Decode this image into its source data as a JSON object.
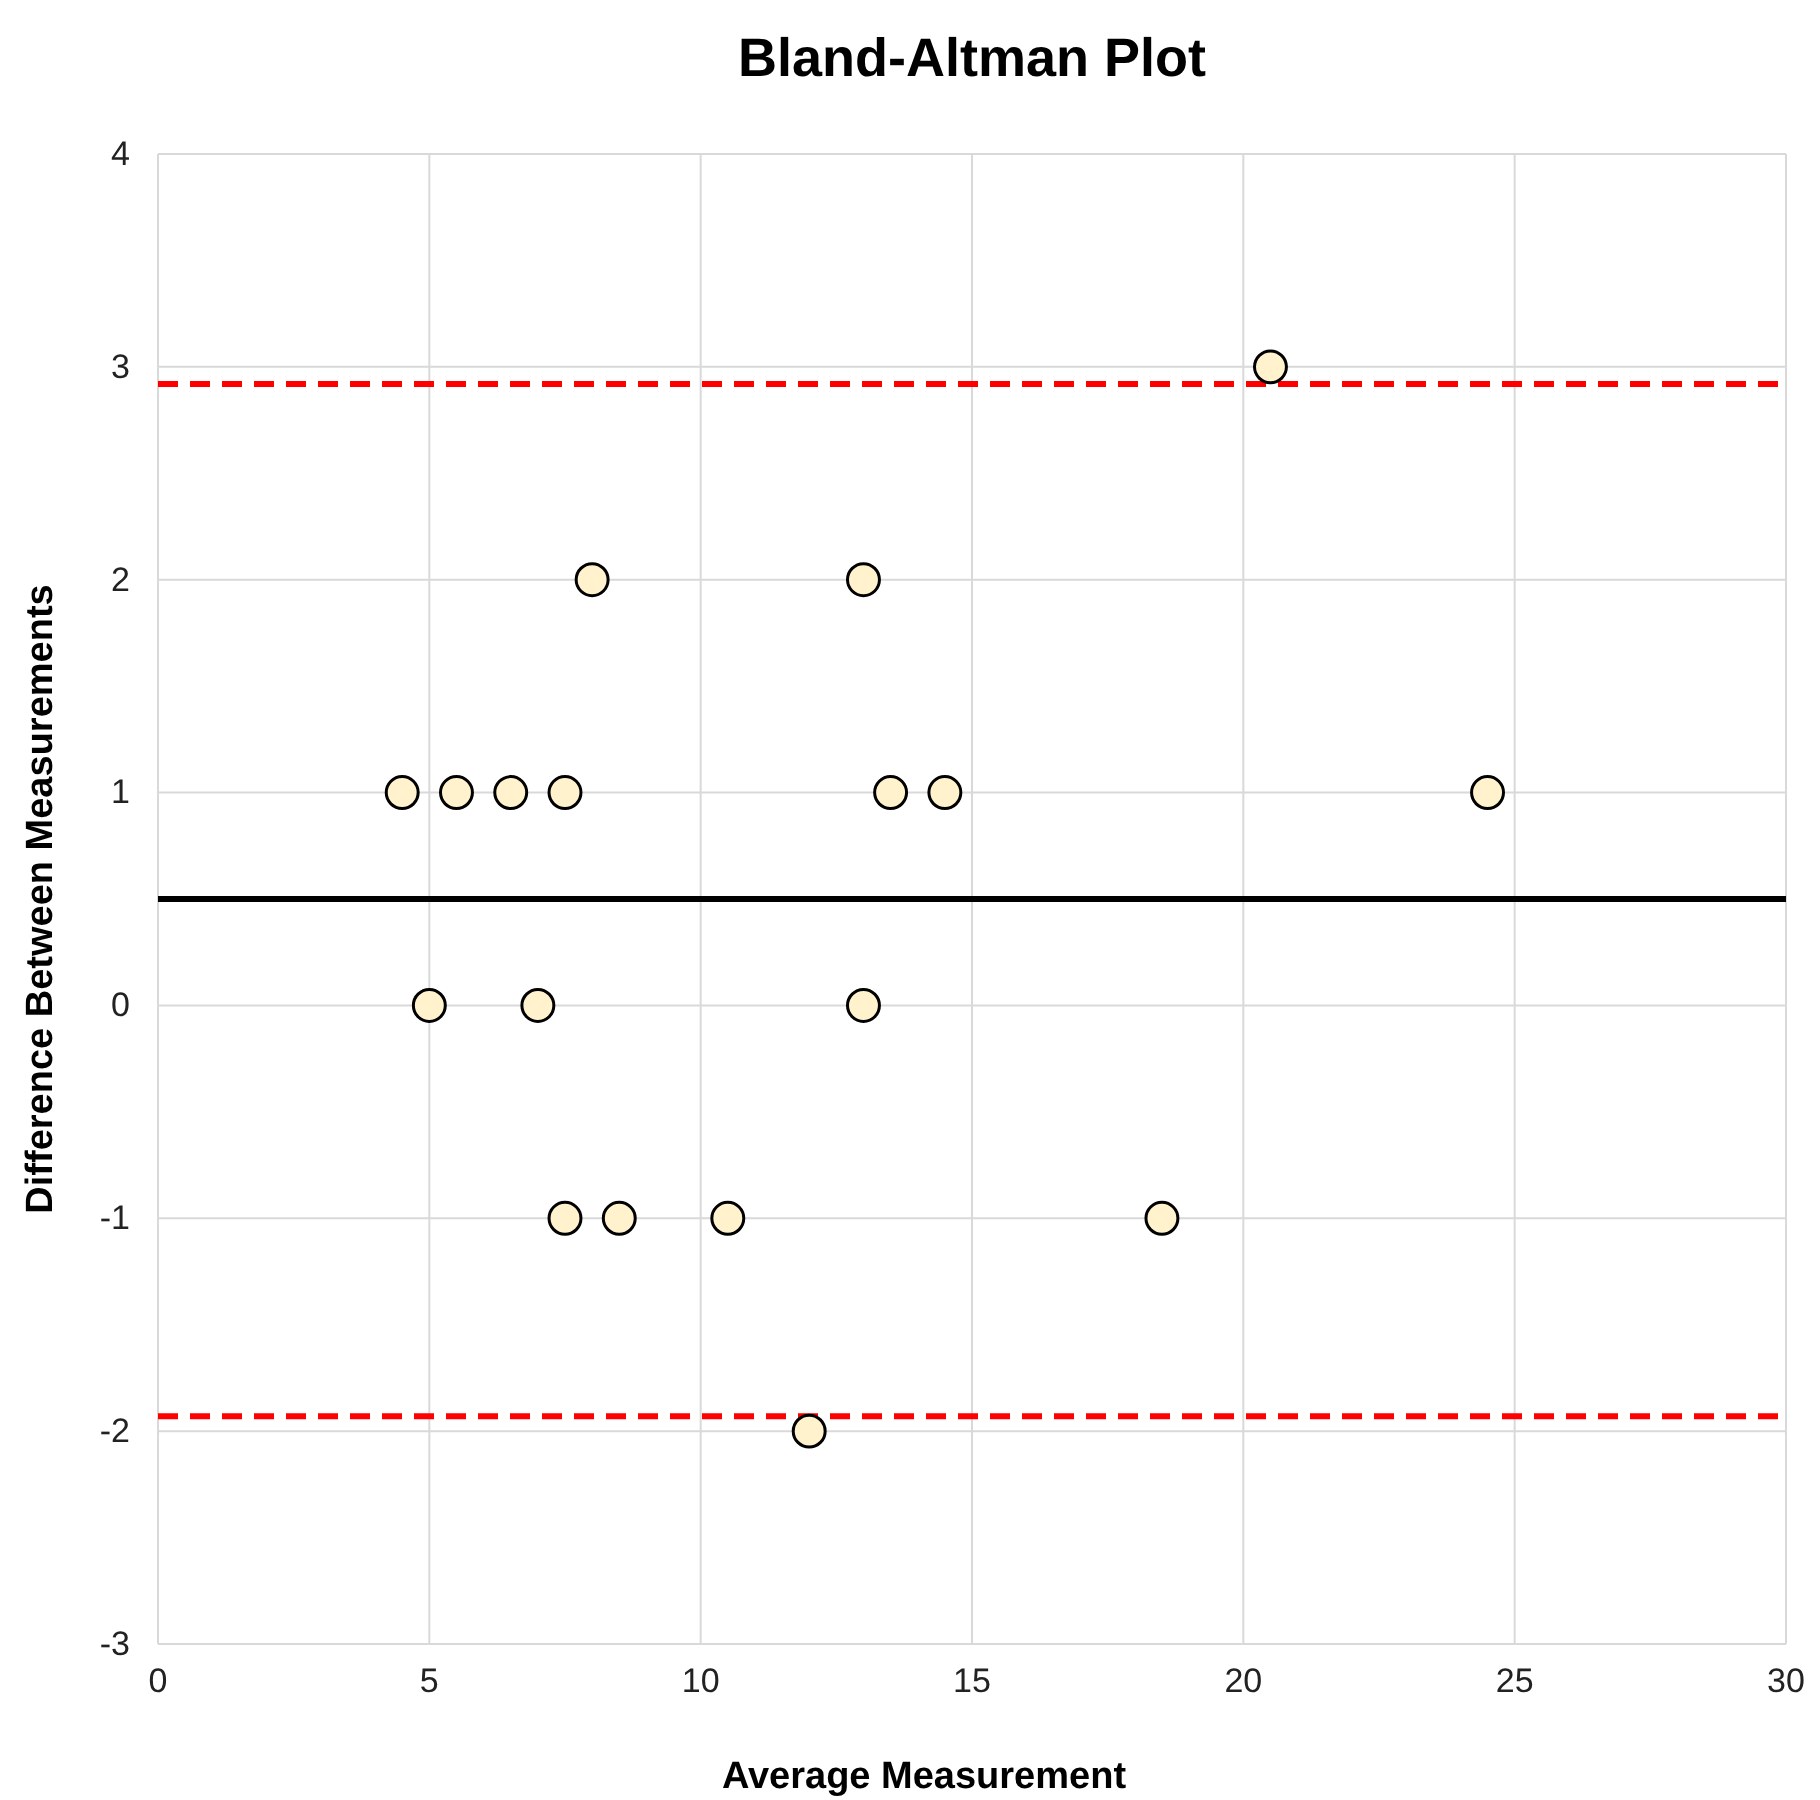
{
  "chart_data": {
    "type": "scatter",
    "title": "Bland-Altman Plot",
    "xlabel": "Average Measurement",
    "ylabel": "Difference Between Measurements",
    "x": [
      4.5,
      5.5,
      6.5,
      7.5,
      8,
      13,
      13.5,
      14.5,
      24.5,
      20.5,
      5,
      7,
      13,
      7.5,
      8.5,
      10.5,
      18.5,
      12
    ],
    "series": [
      {
        "color": "#fff2cc",
        "values": [
          1,
          1,
          1,
          1,
          2,
          2,
          1,
          1,
          1,
          3,
          0,
          0,
          0,
          -1,
          -1,
          -1,
          -1,
          -2
        ]
      }
    ],
    "xlim": [
      0,
      30
    ],
    "xticks": [
      0,
      5,
      10,
      15,
      20,
      25,
      30
    ],
    "ylim": [
      -3,
      4
    ],
    "yticks": [
      -3,
      -2,
      -1,
      0,
      1,
      2,
      3,
      4
    ],
    "grid": true,
    "marker": "circle",
    "ref_lines": [
      {
        "axis": "y",
        "value": 0.5,
        "color": "#000000",
        "line_style": "solid"
      },
      {
        "axis": "y",
        "value": 2.92,
        "color": "#ff0000",
        "line_style": "dashed"
      },
      {
        "axis": "y",
        "value": -1.93,
        "color": "#ff0000",
        "line_style": "dashed"
      }
    ]
  }
}
